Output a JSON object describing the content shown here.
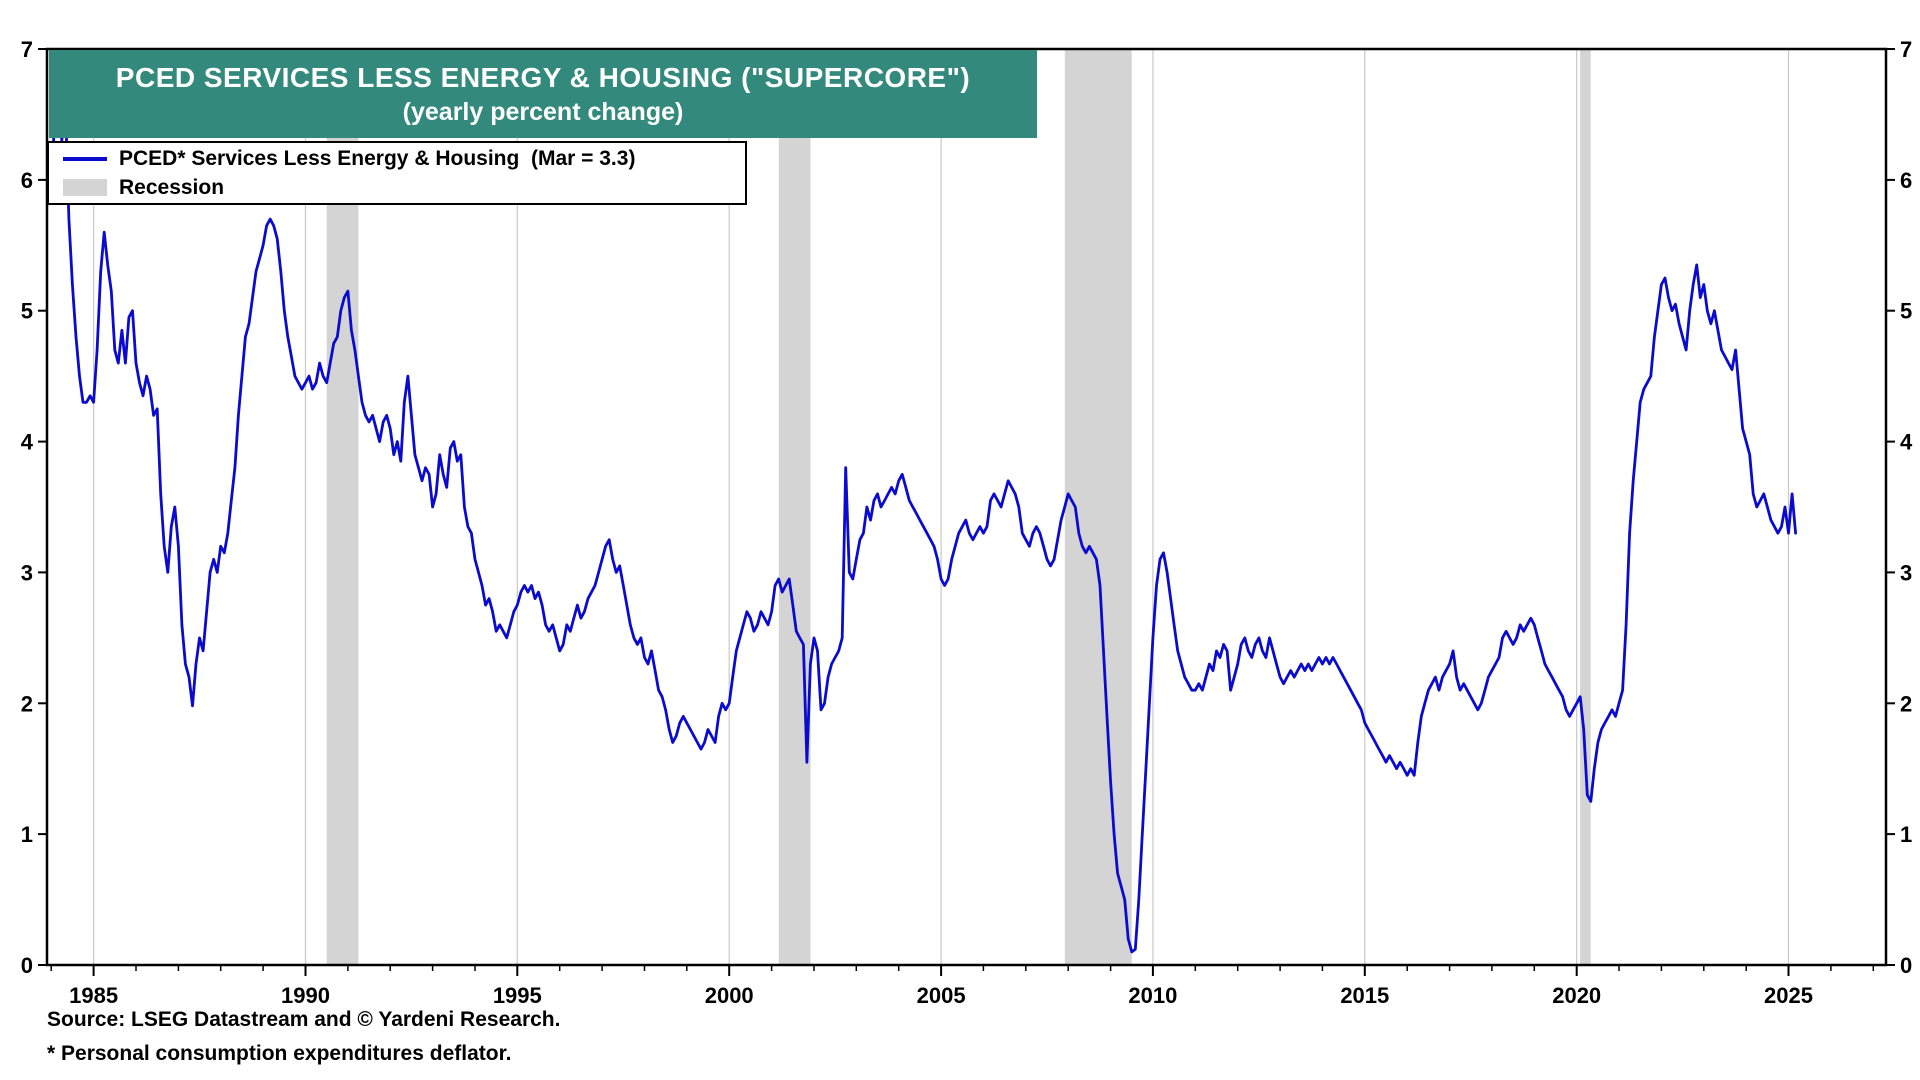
{
  "chart": {
    "title_line1": "PCED SERVICES LESS ENERGY & HOUSING (\"SUPERCORE\")",
    "title_line2": "(yearly percent change)",
    "legend": {
      "series_label": "PCED* Services Less Energy & Housing  (Mar = 3.3)",
      "recession_label": "Recession"
    },
    "source": "Source: LSEG Datastream and © Yardeni Research.",
    "footnote": "* Personal consumption expenditures deflator."
  },
  "colors": {
    "line": "#0b0bd0",
    "recession": "#d4d4d4",
    "title_bg": "#33897c",
    "grid": "#c9c9c9",
    "axis": "#000000"
  },
  "chart_data": {
    "type": "line",
    "title": "PCED SERVICES LESS ENERGY & HOUSING (\"SUPERCORE\")",
    "subtitle": "(yearly percent change)",
    "ylabel": "yearly percent change",
    "ylim": [
      0,
      7
    ],
    "xlim": [
      1983.9,
      2027.3
    ],
    "yticks": [
      0,
      1,
      2,
      3,
      4,
      5,
      6,
      7
    ],
    "xticks": [
      1985,
      1990,
      1995,
      2000,
      2005,
      2010,
      2015,
      2020,
      2025
    ],
    "grid": "vertical-major-only",
    "legend_position": "top-left",
    "recession_bands": [
      [
        1990.5,
        1991.25
      ],
      [
        2001.17,
        2001.92
      ],
      [
        2007.92,
        2009.5
      ],
      [
        2020.08,
        2020.33
      ]
    ],
    "series": [
      {
        "name": "PCED* Services Less Energy & Housing",
        "latest_label": "Mar = 3.3",
        "start_year": 1984,
        "frequency": "monthly",
        "values": [
          5.9,
          6.5,
          6.95,
          6.3,
          6.6,
          5.7,
          5.2,
          4.8,
          4.5,
          4.3,
          4.3,
          4.35,
          4.3,
          4.7,
          5.3,
          5.6,
          5.35,
          5.15,
          4.7,
          4.6,
          4.85,
          4.6,
          4.95,
          5.0,
          4.6,
          4.45,
          4.35,
          4.5,
          4.4,
          4.2,
          4.25,
          3.6,
          3.2,
          3.0,
          3.35,
          3.5,
          3.2,
          2.6,
          2.3,
          2.2,
          1.98,
          2.3,
          2.5,
          2.4,
          2.7,
          3.0,
          3.1,
          3.0,
          3.2,
          3.15,
          3.3,
          3.55,
          3.8,
          4.2,
          4.5,
          4.8,
          4.9,
          5.1,
          5.3,
          5.4,
          5.5,
          5.65,
          5.7,
          5.65,
          5.55,
          5.3,
          5.0,
          4.8,
          4.65,
          4.5,
          4.45,
          4.4,
          4.45,
          4.5,
          4.4,
          4.45,
          4.6,
          4.5,
          4.45,
          4.6,
          4.75,
          4.8,
          5.0,
          5.1,
          5.15,
          4.85,
          4.7,
          4.5,
          4.3,
          4.2,
          4.15,
          4.2,
          4.1,
          4.0,
          4.15,
          4.2,
          4.1,
          3.9,
          4.0,
          3.85,
          4.3,
          4.5,
          4.2,
          3.9,
          3.8,
          3.7,
          3.8,
          3.75,
          3.5,
          3.6,
          3.9,
          3.75,
          3.65,
          3.95,
          4.0,
          3.85,
          3.9,
          3.5,
          3.35,
          3.3,
          3.1,
          3.0,
          2.9,
          2.75,
          2.8,
          2.7,
          2.55,
          2.6,
          2.55,
          2.5,
          2.6,
          2.7,
          2.75,
          2.85,
          2.9,
          2.85,
          2.9,
          2.8,
          2.85,
          2.75,
          2.6,
          2.55,
          2.6,
          2.5,
          2.4,
          2.45,
          2.6,
          2.55,
          2.65,
          2.75,
          2.65,
          2.7,
          2.8,
          2.85,
          2.9,
          3.0,
          3.1,
          3.2,
          3.25,
          3.1,
          3.0,
          3.05,
          2.9,
          2.75,
          2.6,
          2.5,
          2.45,
          2.5,
          2.35,
          2.3,
          2.4,
          2.25,
          2.1,
          2.05,
          1.95,
          1.8,
          1.7,
          1.75,
          1.85,
          1.9,
          1.85,
          1.8,
          1.75,
          1.7,
          1.65,
          1.7,
          1.8,
          1.75,
          1.7,
          1.9,
          2.0,
          1.95,
          2.0,
          2.2,
          2.4,
          2.5,
          2.6,
          2.7,
          2.65,
          2.55,
          2.6,
          2.7,
          2.65,
          2.6,
          2.7,
          2.9,
          2.95,
          2.85,
          2.9,
          2.95,
          2.75,
          2.55,
          2.5,
          2.45,
          1.55,
          2.3,
          2.5,
          2.4,
          1.95,
          2.0,
          2.2,
          2.3,
          2.35,
          2.4,
          2.5,
          3.8,
          3.0,
          2.95,
          3.1,
          3.25,
          3.3,
          3.5,
          3.4,
          3.55,
          3.6,
          3.5,
          3.55,
          3.6,
          3.65,
          3.6,
          3.7,
          3.75,
          3.65,
          3.55,
          3.5,
          3.45,
          3.4,
          3.35,
          3.3,
          3.25,
          3.2,
          3.1,
          2.95,
          2.9,
          2.95,
          3.1,
          3.2,
          3.3,
          3.35,
          3.4,
          3.3,
          3.25,
          3.3,
          3.35,
          3.3,
          3.35,
          3.55,
          3.6,
          3.55,
          3.5,
          3.6,
          3.7,
          3.65,
          3.6,
          3.5,
          3.3,
          3.25,
          3.2,
          3.3,
          3.35,
          3.3,
          3.2,
          3.1,
          3.05,
          3.1,
          3.25,
          3.4,
          3.5,
          3.6,
          3.55,
          3.5,
          3.3,
          3.2,
          3.15,
          3.2,
          3.15,
          3.1,
          2.9,
          2.4,
          1.9,
          1.4,
          1.0,
          0.7,
          0.6,
          0.5,
          0.2,
          0.1,
          0.12,
          0.5,
          1.0,
          1.5,
          2.0,
          2.5,
          2.9,
          3.1,
          3.15,
          3.0,
          2.8,
          2.6,
          2.4,
          2.3,
          2.2,
          2.15,
          2.1,
          2.1,
          2.15,
          2.1,
          2.2,
          2.3,
          2.25,
          2.4,
          2.35,
          2.45,
          2.4,
          2.1,
          2.2,
          2.3,
          2.45,
          2.5,
          2.4,
          2.35,
          2.45,
          2.5,
          2.4,
          2.35,
          2.5,
          2.4,
          2.3,
          2.2,
          2.15,
          2.2,
          2.25,
          2.2,
          2.25,
          2.3,
          2.25,
          2.3,
          2.25,
          2.3,
          2.35,
          2.3,
          2.35,
          2.3,
          2.35,
          2.3,
          2.25,
          2.2,
          2.15,
          2.1,
          2.05,
          2.0,
          1.95,
          1.85,
          1.8,
          1.75,
          1.7,
          1.65,
          1.6,
          1.55,
          1.6,
          1.55,
          1.5,
          1.55,
          1.5,
          1.45,
          1.5,
          1.45,
          1.7,
          1.9,
          2.0,
          2.1,
          2.15,
          2.2,
          2.1,
          2.2,
          2.25,
          2.3,
          2.4,
          2.2,
          2.1,
          2.15,
          2.1,
          2.05,
          2.0,
          1.95,
          2.0,
          2.1,
          2.2,
          2.25,
          2.3,
          2.35,
          2.5,
          2.55,
          2.5,
          2.45,
          2.5,
          2.6,
          2.55,
          2.6,
          2.65,
          2.6,
          2.5,
          2.4,
          2.3,
          2.25,
          2.2,
          2.15,
          2.1,
          2.05,
          1.95,
          1.9,
          1.95,
          2.0,
          2.05,
          1.8,
          1.3,
          1.25,
          1.5,
          1.7,
          1.8,
          1.85,
          1.9,
          1.95,
          1.9,
          2.0,
          2.1,
          2.6,
          3.3,
          3.7,
          4.0,
          4.3,
          4.4,
          4.45,
          4.5,
          4.8,
          5.0,
          5.2,
          5.25,
          5.1,
          5.0,
          5.05,
          4.9,
          4.8,
          4.7,
          5.0,
          5.2,
          5.35,
          5.1,
          5.2,
          5.0,
          4.9,
          5.0,
          4.85,
          4.7,
          4.65,
          4.6,
          4.55,
          4.7,
          4.4,
          4.1,
          4.0,
          3.9,
          3.6,
          3.5,
          3.55,
          3.6,
          3.5,
          3.4,
          3.35,
          3.3,
          3.35,
          3.5,
          3.3,
          3.6,
          3.3
        ]
      }
    ]
  }
}
